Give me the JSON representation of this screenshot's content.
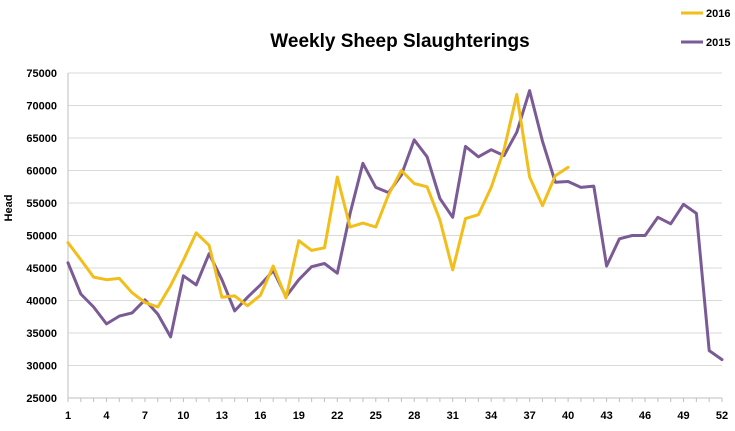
{
  "chart_data": {
    "type": "line",
    "title": "Weekly Sheep Slaughterings",
    "xlabel": "",
    "ylabel": "Head",
    "xlim": [
      1,
      52
    ],
    "ylim": [
      25000,
      75000
    ],
    "yticks": [
      25000,
      30000,
      35000,
      40000,
      45000,
      50000,
      55000,
      60000,
      65000,
      70000,
      75000
    ],
    "xticks": [
      1,
      4,
      7,
      10,
      13,
      16,
      19,
      22,
      25,
      28,
      31,
      34,
      37,
      40,
      43,
      46,
      49,
      52
    ],
    "grid": "horizontal",
    "legend": "top-right",
    "series": [
      {
        "name": "2016",
        "color": "#F2BE1A",
        "x": [
          1,
          2,
          3,
          4,
          5,
          6,
          7,
          8,
          9,
          10,
          11,
          12,
          13,
          14,
          15,
          16,
          17,
          18,
          19,
          20,
          21,
          22,
          23,
          24,
          25,
          26,
          27,
          28,
          29,
          30,
          31,
          32,
          33,
          34,
          35,
          36,
          37,
          38,
          39,
          40
        ],
        "values": [
          48900,
          46300,
          43600,
          43200,
          43400,
          41200,
          39700,
          39000,
          42300,
          46200,
          50400,
          48500,
          40500,
          40700,
          39200,
          40800,
          45300,
          40400,
          49200,
          47700,
          48100,
          59000,
          51300,
          51900,
          51300,
          56300,
          60000,
          58000,
          57500,
          52400,
          44700,
          52600,
          53200,
          57400,
          63200,
          71700,
          59000,
          54600,
          59200,
          60500
        ]
      },
      {
        "name": "2015",
        "color": "#7B5B96",
        "x": [
          1,
          2,
          3,
          4,
          5,
          6,
          7,
          8,
          9,
          10,
          11,
          12,
          13,
          14,
          15,
          16,
          17,
          18,
          19,
          20,
          21,
          22,
          23,
          24,
          25,
          26,
          27,
          28,
          29,
          30,
          31,
          32,
          33,
          34,
          35,
          36,
          37,
          38,
          39,
          40,
          41,
          42,
          43,
          44,
          45,
          46,
          47,
          48,
          49,
          50,
          51,
          52
        ],
        "values": [
          45800,
          41000,
          39000,
          36400,
          37600,
          38100,
          40100,
          37900,
          34400,
          43800,
          42400,
          47200,
          43200,
          38400,
          40500,
          42400,
          44600,
          40600,
          43200,
          45200,
          45700,
          44200,
          53400,
          61100,
          57400,
          56600,
          59300,
          64700,
          62100,
          55700,
          52800,
          63700,
          62100,
          63200,
          62300,
          65900,
          72300,
          64500,
          58200,
          58300,
          57400,
          57600,
          45300,
          49500,
          50000,
          50000,
          52800,
          51800,
          54800,
          53400,
          32300,
          30900
        ]
      }
    ]
  }
}
